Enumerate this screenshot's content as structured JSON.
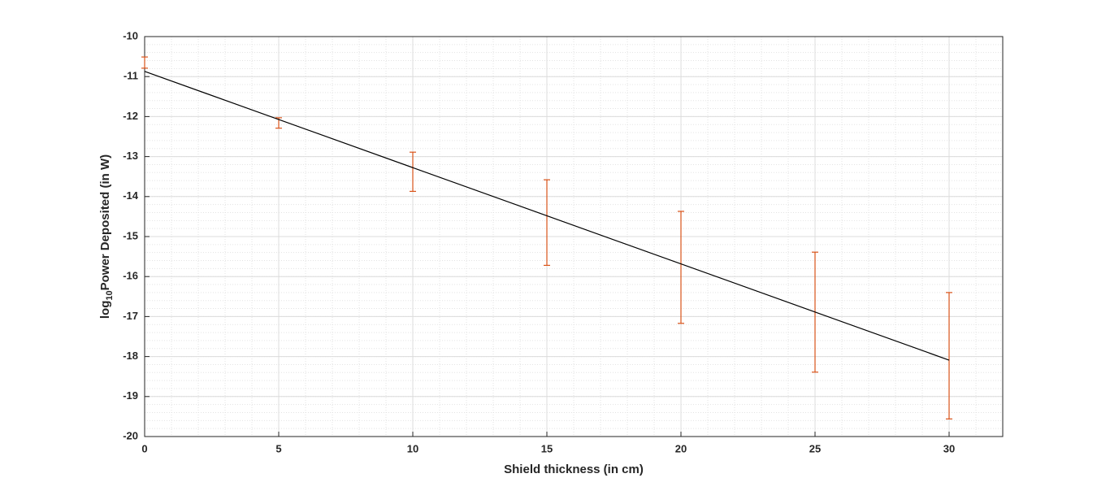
{
  "chart_data": {
    "type": "errorbar",
    "xlabel": "Shield thickness (in cm)",
    "ylabel": {
      "base": "log",
      "sub": "10",
      "rest": "Power Deposited (in W)"
    },
    "xlim": [
      0,
      32
    ],
    "ylim": [
      -20,
      -10
    ],
    "xticks": [
      0,
      5,
      10,
      15,
      20,
      25,
      30
    ],
    "yticks": [
      -20,
      -19,
      -18,
      -17,
      -16,
      -15,
      -14,
      -13,
      -12,
      -11,
      -10
    ],
    "grid": true,
    "minor_grid": true,
    "series": [
      {
        "type": "errorbar",
        "color": "#d95319",
        "x": [
          0,
          5,
          10,
          15,
          20,
          25,
          30
        ],
        "values": [
          -10.65,
          -12.16,
          -13.38,
          -14.65,
          -15.77,
          -16.89,
          -17.98
        ],
        "errors": [
          0.14,
          0.13,
          0.49,
          1.07,
          1.4,
          1.5,
          1.58
        ]
      },
      {
        "type": "line",
        "color": "#000000",
        "x": [
          0,
          30
        ],
        "values": [
          -10.87,
          -18.09
        ]
      }
    ]
  }
}
